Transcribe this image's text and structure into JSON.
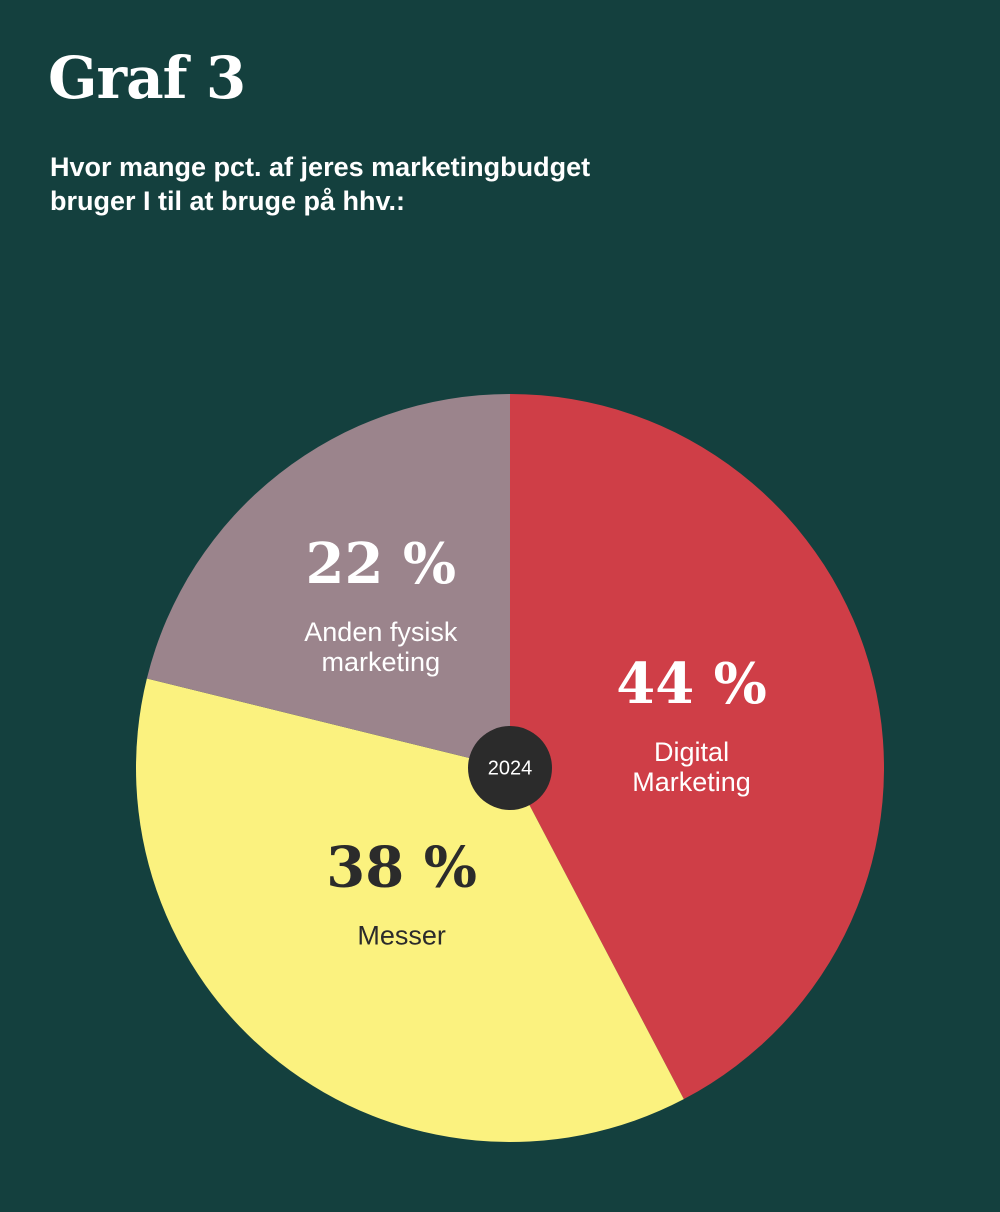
{
  "title": "Graf 3",
  "subtitle_lines": [
    "Hvor mange pct. af jeres marketingbudget",
    "bruger I til at bruge på hhv.:"
  ],
  "chart_data": {
    "type": "pie",
    "center_label": "2024",
    "slices": [
      {
        "label_lines": [
          "Digital",
          "Marketing"
        ],
        "value": 44,
        "value_label": "44 %",
        "color": "#cf3e47",
        "text_color": "#ffffff"
      },
      {
        "label_lines": [
          "Messer"
        ],
        "value": 38,
        "value_label": "38 %",
        "color": "#fbf27f",
        "text_color": "#2b2b2b"
      },
      {
        "label_lines": [
          "Anden fysisk",
          "marketing"
        ],
        "value": 22,
        "value_label": "22 %",
        "color": "#9b848c",
        "text_color": "#ffffff"
      }
    ],
    "center_color": "#2b2b2b",
    "background": "#14403e"
  }
}
